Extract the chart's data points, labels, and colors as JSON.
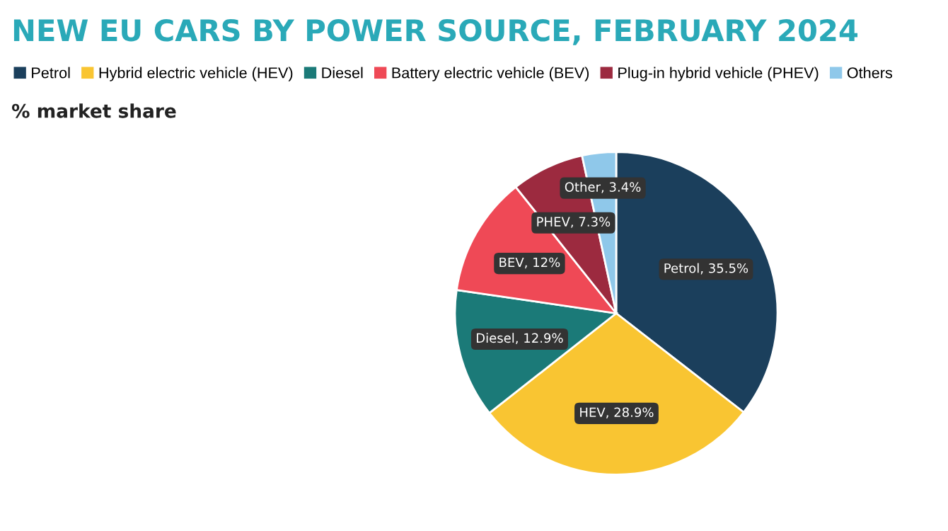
{
  "chart_data": {
    "type": "pie",
    "title": "NEW EU CARS BY POWER SOURCE, FEBRUARY 2024",
    "subtitle": "% market share",
    "categories": [
      "Petrol",
      "Hybrid electric vehicle (HEV)",
      "Diesel",
      "Battery electric vehicle (BEV)",
      "Plug-in hybrid vehicle (PHEV)",
      "Others"
    ],
    "values": [
      35.5,
      28.9,
      12.9,
      12,
      7.3,
      3.4
    ],
    "colors": [
      "#1b3f5c",
      "#f9c532",
      "#1b7a78",
      "#ef4956",
      "#9c2a3f",
      "#8fc8ea"
    ],
    "value_labels": [
      "Petrol, 35.5%",
      "HEV, 28.9%",
      "Diesel, 12.9%",
      "BEV, 12%",
      "PHEV, 7.3%",
      "Other, 3.4%"
    ],
    "legend": "top"
  }
}
